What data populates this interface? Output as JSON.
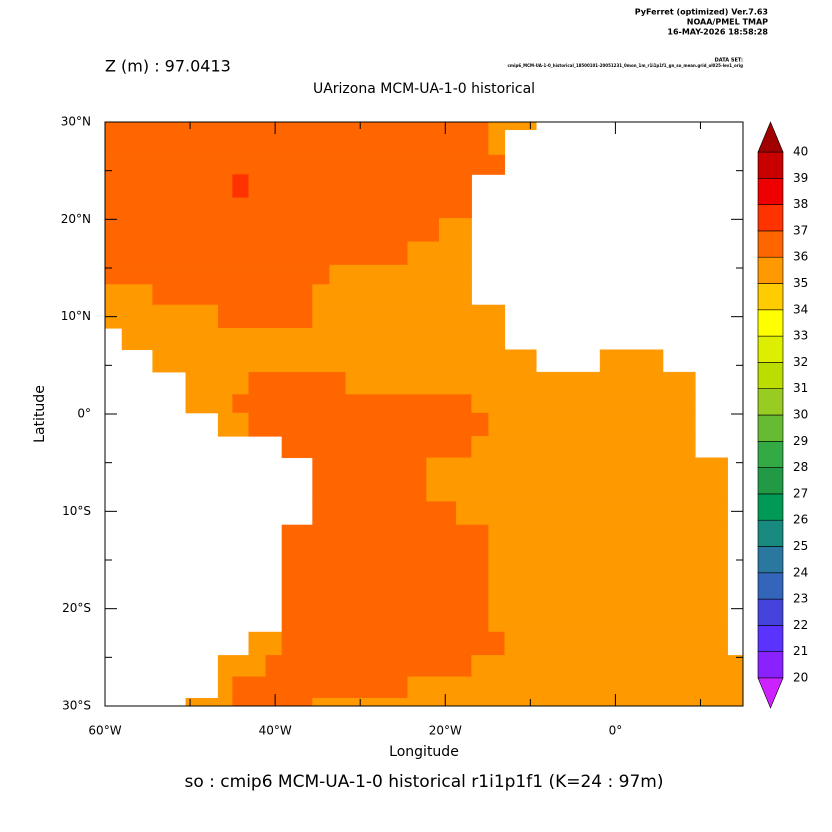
{
  "chart_data": {
    "type": "gridmap",
    "header": [
      "PyFerret (optimized) Ver.7.63",
      "NOAA/PMEL TMAP",
      "16-MAY-2026 18:58:28"
    ],
    "depth_label": "Z (m) : 97.0413",
    "dataset_heading": "DATA SET:",
    "dataset": "cmip6_MCM-UA-1-0_historical_18500101-20051231_0mon_1m_r1i1p1f1_gn_so_mean.grid_ol025-lev1_orig",
    "title": "UArizona MCM-UA-1-0 historical",
    "xlabel": "Longitude",
    "ylabel": "Latitude",
    "caption": "so : cmip6 MCM-UA-1-0 historical r1i1p1f1   (K=24 : 97m)",
    "xlim": [
      -60,
      15
    ],
    "ylim": [
      -30,
      30
    ],
    "xticks": [
      {
        "value": -60,
        "label": "60°W"
      },
      {
        "value": -40,
        "label": "40°W"
      },
      {
        "value": -20,
        "label": "20°W"
      },
      {
        "value": 0,
        "label": "0°"
      }
    ],
    "xminorticks": [
      -50,
      -30,
      -10,
      10
    ],
    "yticks": [
      {
        "value": 30,
        "label": "30°N"
      },
      {
        "value": 20,
        "label": "20°N"
      },
      {
        "value": 10,
        "label": "10°N"
      },
      {
        "value": 0,
        "label": "0°"
      },
      {
        "value": -10,
        "label": "10°S"
      },
      {
        "value": -20,
        "label": "20°S"
      },
      {
        "value": -30,
        "label": "30°S"
      }
    ],
    "yminorticks": [
      25,
      15,
      5,
      -5,
      -15,
      -25
    ],
    "colorbar": {
      "levels": [
        20,
        21,
        22,
        23,
        24,
        25,
        26,
        27,
        28,
        29,
        30,
        31,
        32,
        33,
        34,
        35,
        36,
        37,
        38,
        39,
        40
      ],
      "colors": [
        "#8a22ff",
        "#5a33ff",
        "#4444dd",
        "#3366bb",
        "#2a77a0",
        "#188a80",
        "#009955",
        "#229944",
        "#33aa44",
        "#66bb33",
        "#99cc22",
        "#bbdd00",
        "#ddee00",
        "#ffff00",
        "#ffcc00",
        "#ff9900",
        "#ff6600",
        "#ff3300",
        "#ee0000",
        "#c80000"
      ],
      "low_color": "#cc22ff",
      "high_color": "#a00000"
    },
    "rows": [
      {
        "lat": [
          30,
          29.2
        ],
        "segments": [
          [
            -60,
            -14.9,
            36.5
          ],
          [
            -14.9,
            -9.3,
            35.5
          ]
        ]
      },
      {
        "lat": [
          29.2,
          26.6
        ],
        "segments": [
          [
            -60,
            -14.9,
            36.5
          ],
          [
            -14.9,
            -13,
            35.5
          ]
        ]
      },
      {
        "lat": [
          26.6,
          24.6
        ],
        "segments": [
          [
            -60,
            -13,
            36.5
          ]
        ]
      },
      {
        "lat": [
          24.6,
          22.2
        ],
        "segments": [
          [
            -60,
            -45,
            36.5
          ],
          [
            -45,
            -43.1,
            37.5
          ],
          [
            -43.1,
            -16.9,
            36.5
          ]
        ]
      },
      {
        "lat": [
          22.2,
          20.1
        ],
        "segments": [
          [
            -60,
            -16.9,
            36.5
          ]
        ]
      },
      {
        "lat": [
          20.1,
          17.7
        ],
        "segments": [
          [
            -60,
            -20.7,
            36.5
          ],
          [
            -20.7,
            -16.9,
            35.5
          ]
        ]
      },
      {
        "lat": [
          17.7,
          15.3
        ],
        "segments": [
          [
            -60,
            -24.4,
            36.5
          ],
          [
            -24.4,
            -16.9,
            35.5
          ]
        ]
      },
      {
        "lat": [
          15.3,
          13.3
        ],
        "segments": [
          [
            -60,
            -33.6,
            36.5
          ],
          [
            -33.6,
            -16.9,
            35.5
          ]
        ]
      },
      {
        "lat": [
          13.3,
          11.2
        ],
        "segments": [
          [
            -60,
            -54.4,
            35.5
          ],
          [
            -54.4,
            -35.6,
            36.5
          ],
          [
            -35.6,
            -16.9,
            35.5
          ]
        ]
      },
      {
        "lat": [
          11.2,
          8.8
        ],
        "segments": [
          [
            -60,
            -46.7,
            35.5
          ],
          [
            -46.7,
            -35.6,
            36.5
          ],
          [
            -35.6,
            -13,
            35.5
          ]
        ]
      },
      {
        "lat": [
          8.8,
          6.6
        ],
        "segments": [
          [
            -58,
            -13,
            35.5
          ]
        ]
      },
      {
        "lat": [
          6.6,
          4.3
        ],
        "segments": [
          [
            -54.4,
            -9.3,
            35.5
          ],
          [
            -1.8,
            5.6,
            35.5
          ]
        ]
      },
      {
        "lat": [
          4.3,
          2
        ],
        "segments": [
          [
            -50.5,
            -43.1,
            35.5
          ],
          [
            -43.1,
            -31.7,
            36.5
          ],
          [
            -31.7,
            9.4,
            35.5
          ]
        ]
      },
      {
        "lat": [
          2,
          0.1
        ],
        "segments": [
          [
            -50.5,
            -45,
            35.5
          ],
          [
            -45,
            -16.9,
            36.5
          ],
          [
            -16.9,
            9.4,
            35.5
          ]
        ]
      },
      {
        "lat": [
          0.1,
          -2.3
        ],
        "segments": [
          [
            -46.7,
            -43.1,
            35.5
          ],
          [
            -43.1,
            -14.9,
            36.5
          ],
          [
            -14.9,
            9.4,
            35.5
          ]
        ]
      },
      {
        "lat": [
          -2.3,
          -4.5
        ],
        "segments": [
          [
            -39.2,
            -16.9,
            36.5
          ],
          [
            -16.9,
            9.4,
            35.5
          ]
        ]
      },
      {
        "lat": [
          -4.5,
          -9
        ],
        "segments": [
          [
            -35.6,
            -22.2,
            36.5
          ],
          [
            -22.2,
            13.2,
            35.5
          ]
        ]
      },
      {
        "lat": [
          -9,
          -11.4
        ],
        "segments": [
          [
            -35.6,
            -18.7,
            36.5
          ],
          [
            -18.7,
            13.2,
            35.5
          ]
        ]
      },
      {
        "lat": [
          -11.4,
          -22.4
        ],
        "segments": [
          [
            -39.2,
            -14.9,
            36.5
          ],
          [
            -14.9,
            13.2,
            35.5
          ]
        ]
      },
      {
        "lat": [
          -22.4,
          -24.8
        ],
        "segments": [
          [
            -43.1,
            -39.2,
            35.5
          ],
          [
            -39.2,
            -13,
            36.5
          ],
          [
            -13,
            13.2,
            35.5
          ]
        ]
      },
      {
        "lat": [
          -24.8,
          -27
        ],
        "segments": [
          [
            -46.7,
            -41.1,
            35.5
          ],
          [
            -41.1,
            -16.9,
            36.5
          ],
          [
            -16.9,
            15,
            35.5
          ]
        ]
      },
      {
        "lat": [
          -27,
          -29.2
        ],
        "segments": [
          [
            -46.7,
            -45,
            35.5
          ],
          [
            -45,
            -24.4,
            36.5
          ],
          [
            -24.4,
            15,
            35.5
          ]
        ]
      },
      {
        "lat": [
          -29.2,
          -30
        ],
        "segments": [
          [
            -50.5,
            -45,
            35.5
          ],
          [
            -45,
            -35.6,
            36.5
          ],
          [
            -35.6,
            15,
            35.5
          ]
        ]
      }
    ]
  }
}
